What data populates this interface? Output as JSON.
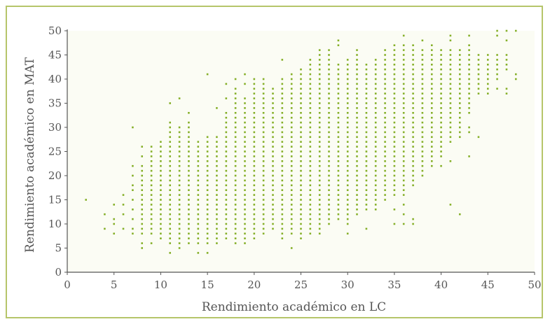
{
  "chart_data": {
    "type": "scatter",
    "title": "",
    "xlabel": "Rendimiento académico en LC",
    "ylabel": "Rendimiento académico en MAT",
    "xlim": [
      0,
      50
    ],
    "ylim": [
      0,
      50
    ],
    "xticks": [
      "0",
      "5",
      "10",
      "15",
      "20",
      "25",
      "30",
      "35",
      "40",
      "45",
      "50"
    ],
    "yticks": [
      "0",
      "5",
      "10",
      "15",
      "20",
      "25",
      "30",
      "35",
      "40",
      "45",
      "50"
    ],
    "grid": false,
    "legend": "none",
    "colors": {
      "point": "#86b02a",
      "frame": "#b6c56a",
      "axis": "#555555",
      "plot_bg": "#fbfcf4"
    },
    "columns": [
      {
        "x": 2,
        "y": [
          15
        ]
      },
      {
        "x": 4,
        "y": [
          9,
          12
        ]
      },
      {
        "x": 5,
        "y": [
          8,
          10,
          11,
          14
        ]
      },
      {
        "x": 6,
        "y": [
          9,
          12,
          14,
          16
        ]
      },
      {
        "x": 7,
        "y": [
          8,
          9,
          11,
          13,
          15,
          17,
          18,
          20,
          22,
          30
        ]
      },
      {
        "x": 8,
        "y": [
          5,
          6,
          8,
          9,
          10,
          11,
          12,
          13,
          14,
          15,
          16,
          17,
          18,
          19,
          20,
          21,
          22,
          24,
          26
        ]
      },
      {
        "x": 9,
        "y": [
          6,
          8,
          9,
          10,
          11,
          12,
          13,
          14,
          15,
          16,
          17,
          18,
          19,
          20,
          21,
          22,
          23,
          24,
          25,
          26
        ]
      },
      {
        "x": 10,
        "y": [
          7,
          8,
          9,
          10,
          11,
          12,
          13,
          14,
          15,
          16,
          17,
          18,
          19,
          20,
          21,
          22,
          23,
          24,
          25,
          26,
          27
        ]
      },
      {
        "x": 11,
        "y": [
          4,
          6,
          7,
          8,
          9,
          10,
          11,
          12,
          13,
          14,
          15,
          16,
          17,
          18,
          19,
          20,
          21,
          22,
          23,
          24,
          25,
          26,
          27,
          28,
          29,
          30,
          31,
          35
        ]
      },
      {
        "x": 12,
        "y": [
          5,
          6,
          7,
          8,
          9,
          10,
          11,
          12,
          13,
          14,
          15,
          16,
          17,
          18,
          19,
          20,
          21,
          22,
          23,
          24,
          25,
          26,
          27,
          28,
          29,
          30,
          36
        ]
      },
      {
        "x": 13,
        "y": [
          6,
          7,
          8,
          9,
          10,
          11,
          12,
          13,
          14,
          15,
          16,
          17,
          18,
          19,
          20,
          21,
          22,
          23,
          24,
          25,
          26,
          27,
          28,
          29,
          30,
          31,
          33
        ]
      },
      {
        "x": 14,
        "y": [
          4,
          6,
          7,
          8,
          9,
          10,
          11,
          12,
          13,
          14,
          15,
          16,
          17,
          18,
          19,
          20,
          21,
          22,
          23,
          24,
          25,
          26,
          27
        ]
      },
      {
        "x": 15,
        "y": [
          4,
          6,
          7,
          8,
          9,
          10,
          11,
          12,
          13,
          14,
          15,
          16,
          17,
          18,
          19,
          20,
          21,
          22,
          23,
          24,
          25,
          26,
          27,
          28,
          41
        ]
      },
      {
        "x": 16,
        "y": [
          6,
          7,
          8,
          9,
          10,
          11,
          12,
          13,
          14,
          15,
          16,
          17,
          18,
          19,
          20,
          21,
          22,
          23,
          24,
          25,
          26,
          27,
          28,
          34
        ]
      },
      {
        "x": 17,
        "y": [
          7,
          8,
          9,
          10,
          11,
          12,
          13,
          14,
          15,
          16,
          17,
          18,
          19,
          20,
          21,
          22,
          23,
          24,
          25,
          26,
          27,
          28,
          29,
          30,
          31,
          32,
          33,
          36,
          39
        ]
      },
      {
        "x": 18,
        "y": [
          6,
          7,
          8,
          9,
          10,
          11,
          12,
          13,
          14,
          15,
          16,
          17,
          18,
          19,
          20,
          21,
          22,
          23,
          24,
          25,
          26,
          27,
          28,
          29,
          30,
          31,
          32,
          33,
          34,
          35,
          36,
          37,
          38,
          40
        ]
      },
      {
        "x": 19,
        "y": [
          6,
          7,
          8,
          9,
          10,
          11,
          12,
          13,
          14,
          15,
          16,
          17,
          18,
          19,
          20,
          21,
          22,
          23,
          24,
          25,
          26,
          27,
          28,
          29,
          30,
          31,
          32,
          33,
          34,
          35,
          36,
          39,
          41
        ]
      },
      {
        "x": 20,
        "y": [
          7,
          8,
          9,
          10,
          11,
          12,
          13,
          14,
          15,
          16,
          17,
          18,
          19,
          20,
          21,
          22,
          23,
          24,
          25,
          26,
          27,
          28,
          29,
          30,
          31,
          32,
          33,
          34,
          35,
          36,
          37,
          38,
          39,
          40
        ]
      },
      {
        "x": 21,
        "y": [
          8,
          9,
          10,
          11,
          12,
          13,
          14,
          15,
          16,
          17,
          18,
          19,
          20,
          21,
          22,
          23,
          24,
          25,
          26,
          27,
          28,
          29,
          30,
          31,
          32,
          33,
          34,
          35,
          36,
          37,
          38,
          39,
          40
        ]
      },
      {
        "x": 22,
        "y": [
          9,
          10,
          11,
          12,
          13,
          14,
          15,
          16,
          17,
          18,
          19,
          20,
          21,
          22,
          23,
          24,
          25,
          26,
          27,
          28,
          29,
          30,
          31,
          32,
          33,
          34,
          35,
          36,
          37,
          38
        ]
      },
      {
        "x": 23,
        "y": [
          7,
          8,
          9,
          10,
          11,
          12,
          13,
          14,
          15,
          16,
          17,
          18,
          19,
          20,
          21,
          22,
          23,
          24,
          25,
          26,
          27,
          28,
          29,
          30,
          31,
          32,
          33,
          34,
          35,
          36,
          37,
          38,
          39,
          40,
          44
        ]
      },
      {
        "x": 24,
        "y": [
          5,
          8,
          9,
          10,
          11,
          12,
          13,
          14,
          15,
          16,
          17,
          18,
          19,
          20,
          21,
          22,
          23,
          24,
          25,
          26,
          27,
          28,
          29,
          30,
          31,
          32,
          33,
          34,
          35,
          36,
          37,
          38,
          39,
          40,
          41
        ]
      },
      {
        "x": 25,
        "y": [
          7,
          8,
          9,
          10,
          11,
          12,
          13,
          14,
          15,
          16,
          17,
          18,
          19,
          20,
          21,
          22,
          23,
          24,
          25,
          26,
          27,
          28,
          29,
          30,
          31,
          32,
          33,
          34,
          35,
          36,
          37,
          38,
          39,
          40,
          41,
          42
        ]
      },
      {
        "x": 26,
        "y": [
          8,
          9,
          10,
          11,
          12,
          13,
          14,
          15,
          16,
          17,
          18,
          19,
          20,
          21,
          22,
          23,
          24,
          25,
          26,
          27,
          28,
          29,
          30,
          31,
          32,
          33,
          34,
          35,
          36,
          37,
          38,
          39,
          40,
          41,
          42,
          43,
          44
        ]
      },
      {
        "x": 27,
        "y": [
          8,
          9,
          10,
          11,
          12,
          13,
          14,
          15,
          16,
          17,
          18,
          19,
          20,
          21,
          22,
          23,
          24,
          25,
          26,
          27,
          28,
          29,
          30,
          31,
          32,
          33,
          34,
          35,
          36,
          37,
          38,
          39,
          40,
          41,
          42,
          43,
          44,
          45,
          46
        ]
      },
      {
        "x": 28,
        "y": [
          10,
          11,
          12,
          13,
          14,
          15,
          16,
          17,
          18,
          19,
          20,
          21,
          22,
          23,
          24,
          25,
          26,
          27,
          28,
          29,
          30,
          31,
          32,
          33,
          34,
          35,
          36,
          37,
          38,
          39,
          40,
          41,
          42,
          43,
          44,
          45,
          46
        ]
      },
      {
        "x": 29,
        "y": [
          11,
          12,
          13,
          14,
          15,
          16,
          17,
          18,
          19,
          20,
          21,
          22,
          23,
          24,
          25,
          26,
          27,
          28,
          29,
          30,
          31,
          32,
          33,
          34,
          35,
          36,
          37,
          38,
          39,
          40,
          41,
          42,
          43,
          47,
          48
        ]
      },
      {
        "x": 30,
        "y": [
          8,
          10,
          11,
          12,
          13,
          14,
          15,
          16,
          17,
          18,
          19,
          20,
          21,
          22,
          23,
          24,
          25,
          26,
          27,
          28,
          29,
          30,
          31,
          32,
          33,
          34,
          35,
          36,
          37,
          38,
          39,
          40,
          41,
          42,
          43,
          44
        ]
      },
      {
        "x": 31,
        "y": [
          12,
          13,
          14,
          15,
          16,
          17,
          18,
          19,
          20,
          21,
          22,
          23,
          24,
          25,
          26,
          27,
          28,
          29,
          30,
          31,
          32,
          33,
          34,
          35,
          36,
          37,
          38,
          39,
          40,
          41,
          42,
          43,
          44,
          45,
          46
        ]
      },
      {
        "x": 32,
        "y": [
          9,
          13,
          14,
          15,
          16,
          17,
          18,
          19,
          20,
          21,
          22,
          23,
          24,
          25,
          26,
          27,
          28,
          29,
          30,
          31,
          32,
          33,
          34,
          35,
          36,
          37,
          38,
          39,
          40,
          41,
          42,
          43
        ]
      },
      {
        "x": 33,
        "y": [
          13,
          14,
          15,
          16,
          17,
          18,
          19,
          20,
          21,
          22,
          23,
          24,
          25,
          26,
          27,
          28,
          29,
          30,
          31,
          32,
          33,
          34,
          35,
          36,
          37,
          38,
          39,
          40,
          41,
          42,
          43,
          44
        ]
      },
      {
        "x": 34,
        "y": [
          15,
          16,
          17,
          18,
          19,
          20,
          21,
          22,
          23,
          24,
          25,
          26,
          27,
          28,
          29,
          30,
          31,
          32,
          33,
          34,
          35,
          36,
          37,
          38,
          39,
          40,
          41,
          42,
          43,
          44,
          45,
          46
        ]
      },
      {
        "x": 35,
        "y": [
          10,
          13,
          16,
          17,
          18,
          19,
          20,
          21,
          22,
          23,
          24,
          25,
          26,
          27,
          28,
          29,
          30,
          31,
          32,
          33,
          34,
          35,
          36,
          37,
          38,
          39,
          40,
          41,
          42,
          43,
          44,
          45,
          46,
          47
        ]
      },
      {
        "x": 36,
        "y": [
          10,
          12,
          14,
          16,
          17,
          18,
          19,
          20,
          21,
          22,
          23,
          24,
          25,
          26,
          27,
          28,
          29,
          30,
          31,
          32,
          33,
          34,
          35,
          36,
          37,
          38,
          39,
          40,
          41,
          42,
          43,
          44,
          45,
          46,
          47,
          49
        ]
      },
      {
        "x": 37,
        "y": [
          10,
          11,
          18,
          19,
          20,
          21,
          22,
          23,
          24,
          25,
          26,
          27,
          28,
          29,
          30,
          31,
          32,
          33,
          34,
          35,
          36,
          37,
          38,
          39,
          40,
          41,
          42,
          43,
          44,
          45,
          46,
          47
        ]
      },
      {
        "x": 38,
        "y": [
          20,
          21,
          22,
          23,
          24,
          25,
          26,
          27,
          28,
          29,
          30,
          31,
          32,
          33,
          34,
          35,
          36,
          37,
          38,
          39,
          40,
          41,
          42,
          43,
          44,
          45,
          46,
          48
        ]
      },
      {
        "x": 39,
        "y": [
          22,
          23,
          24,
          25,
          26,
          27,
          28,
          29,
          30,
          31,
          32,
          33,
          34,
          35,
          36,
          37,
          38,
          39,
          40,
          41,
          42,
          43,
          44,
          45,
          46,
          47
        ]
      },
      {
        "x": 40,
        "y": [
          22,
          24,
          25,
          26,
          27,
          28,
          29,
          30,
          31,
          32,
          33,
          34,
          35,
          36,
          37,
          38,
          39,
          40,
          41,
          42,
          43,
          44,
          45,
          46
        ]
      },
      {
        "x": 41,
        "y": [
          14,
          23,
          27,
          28,
          29,
          30,
          31,
          32,
          33,
          34,
          35,
          36,
          37,
          38,
          39,
          40,
          41,
          42,
          43,
          44,
          45,
          46,
          48,
          49
        ]
      },
      {
        "x": 42,
        "y": [
          12,
          28,
          29,
          30,
          31,
          32,
          33,
          34,
          35,
          36,
          37,
          38,
          39,
          40,
          41,
          42,
          43,
          44,
          45,
          46
        ]
      },
      {
        "x": 43,
        "y": [
          24,
          29,
          30,
          33,
          34,
          35,
          36,
          37,
          38,
          39,
          40,
          41,
          42,
          43,
          44,
          45,
          46,
          47,
          49
        ]
      },
      {
        "x": 44,
        "y": [
          28,
          37,
          38,
          39,
          40,
          41,
          42,
          43,
          44,
          45
        ]
      },
      {
        "x": 45,
        "y": [
          37,
          38,
          39,
          40,
          41,
          42,
          43,
          44,
          45
        ]
      },
      {
        "x": 46,
        "y": [
          38,
          40,
          41,
          42,
          43,
          44,
          45,
          49,
          50
        ]
      },
      {
        "x": 47,
        "y": [
          37,
          38,
          42,
          43,
          44,
          45,
          48,
          50
        ]
      },
      {
        "x": 48,
        "y": [
          40,
          41,
          50
        ]
      }
    ]
  }
}
